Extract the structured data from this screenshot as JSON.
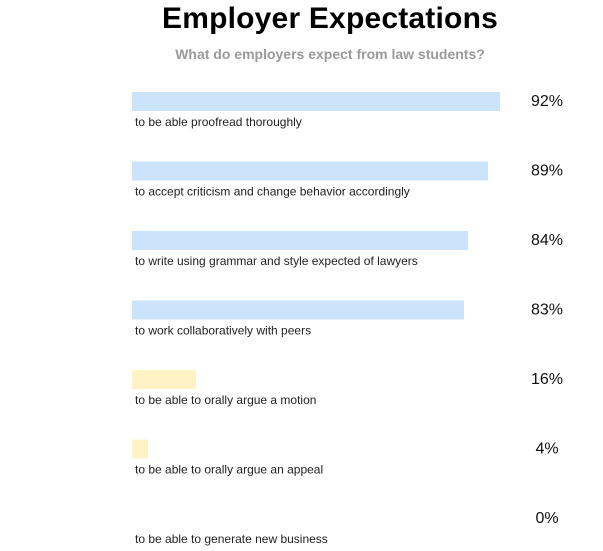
{
  "chart_data": {
    "type": "bar",
    "orientation": "horizontal",
    "title": "Employer Expectations",
    "subtitle": "What do employers expect from law students?",
    "categories": [
      "to be able proofread thoroughly",
      "to accept criticism and change behavior accordingly",
      "to write using grammar and style expected of lawyers",
      "to work collaboratively with peers",
      "to be able to orally argue a motion",
      "to be able to orally argue an appeal",
      "to be able to generate new business"
    ],
    "values": [
      92,
      89,
      84,
      83,
      16,
      4,
      0
    ],
    "value_labels": [
      "92%",
      "89%",
      "84%",
      "83%",
      "16%",
      "4%",
      "0%"
    ],
    "unit": "%",
    "xlim": [
      0,
      100
    ],
    "colors": [
      "#cce4fb",
      "#cce4fb",
      "#cce4fb",
      "#cce4fb",
      "#fff2c4",
      "#fff2c4",
      "#fff2c4"
    ],
    "grid": false,
    "legend": "none"
  }
}
